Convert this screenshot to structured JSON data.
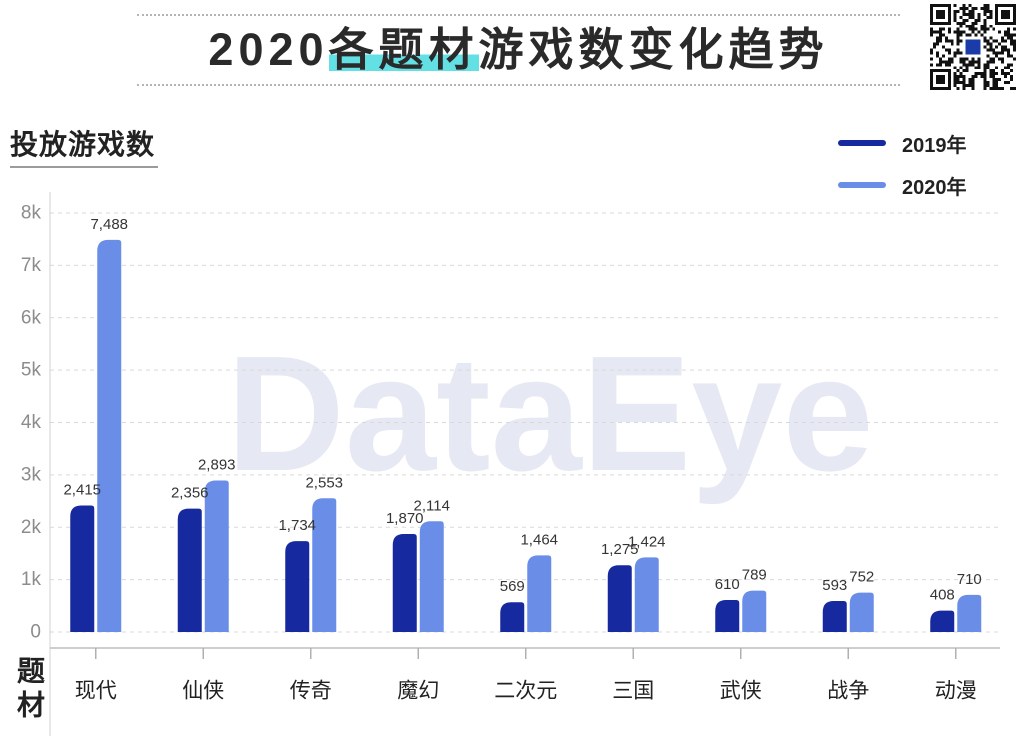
{
  "watermark": "DataEye",
  "colors": {
    "title_highlight": "#62e0e4"
  },
  "chart_data": {
    "type": "bar",
    "title": "2020各题材游戏数变化趋势",
    "title_highlight": "各题材",
    "ylabel": "投放游戏数",
    "xlabel": "题材",
    "categories": [
      "现代",
      "仙侠",
      "传奇",
      "魔幻",
      "二次元",
      "三国",
      "武侠",
      "战争",
      "动漫"
    ],
    "series": [
      {
        "name": "2019年",
        "color": "#16299e",
        "values": [
          2415,
          2356,
          1734,
          1870,
          569,
          1275,
          610,
          593,
          408
        ]
      },
      {
        "name": "2020年",
        "color": "#6a8de8",
        "values": [
          7488,
          2893,
          2553,
          2114,
          1464,
          1424,
          789,
          752,
          710
        ]
      }
    ],
    "ylim": [
      0,
      8000
    ],
    "yticks": [
      0,
      1000,
      2000,
      3000,
      4000,
      5000,
      6000,
      7000,
      8000
    ],
    "ytick_labels": [
      "0",
      "1k",
      "2k",
      "3k",
      "4k",
      "5k",
      "6k",
      "7k",
      "8k"
    ],
    "grid": true,
    "legend": "top-right",
    "data_labels": true
  }
}
